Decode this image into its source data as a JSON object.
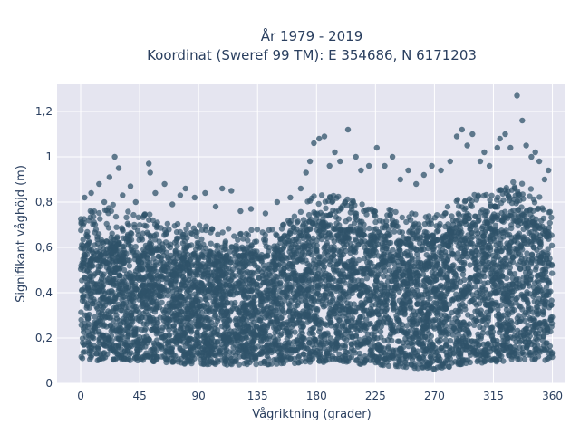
{
  "chart_data": {
    "type": "scatter",
    "title": "År 1979 - 2019",
    "subtitle": "Koordinat (Sweref 99 TM): E 354686, N 6171203",
    "xlabel": "Vågriktning (grader)",
    "ylabel": "Signifikant våghöjd (m)",
    "xlim": [
      -18,
      370
    ],
    "ylim": [
      0,
      1.32
    ],
    "x_ticks": [
      0,
      45,
      90,
      135,
      180,
      225,
      270,
      315,
      360
    ],
    "x_tick_labels": [
      "0",
      "45",
      "90",
      "135",
      "180",
      "225",
      "270",
      "315",
      "360"
    ],
    "y_ticks": [
      0,
      0.2,
      0.4,
      0.6,
      0.8,
      1.0,
      1.2
    ],
    "y_tick_labels": [
      "0",
      "0,2",
      "0,4",
      "0,6",
      "0,8",
      "1",
      "1,2"
    ],
    "grid": true,
    "legend": "none",
    "marker_color": "#2f5269",
    "envelope": {
      "x": [
        0,
        20,
        45,
        70,
        90,
        120,
        150,
        170,
        180,
        200,
        225,
        250,
        270,
        290,
        315,
        335,
        360
      ],
      "upper": [
        0.74,
        0.8,
        0.76,
        0.72,
        0.7,
        0.68,
        0.68,
        0.78,
        0.86,
        0.82,
        0.78,
        0.76,
        0.74,
        0.82,
        0.86,
        0.9,
        0.78
      ],
      "dense_upper": [
        0.58,
        0.62,
        0.6,
        0.58,
        0.56,
        0.55,
        0.56,
        0.64,
        0.72,
        0.68,
        0.64,
        0.62,
        0.62,
        0.68,
        0.72,
        0.74,
        0.64
      ],
      "lower": [
        0.1,
        0.1,
        0.1,
        0.09,
        0.08,
        0.08,
        0.08,
        0.09,
        0.09,
        0.09,
        0.08,
        0.07,
        0.06,
        0.08,
        0.09,
        0.1,
        0.1
      ]
    },
    "outliers": [
      [
        3,
        0.82
      ],
      [
        8,
        0.84
      ],
      [
        14,
        0.88
      ],
      [
        18,
        0.8
      ],
      [
        22,
        0.91
      ],
      [
        26,
        1.0
      ],
      [
        29,
        0.95
      ],
      [
        32,
        0.83
      ],
      [
        38,
        0.87
      ],
      [
        42,
        0.8
      ],
      [
        52,
        0.97
      ],
      [
        53,
        0.93
      ],
      [
        57,
        0.84
      ],
      [
        64,
        0.88
      ],
      [
        70,
        0.79
      ],
      [
        76,
        0.83
      ],
      [
        80,
        0.86
      ],
      [
        87,
        0.82
      ],
      [
        95,
        0.84
      ],
      [
        103,
        0.78
      ],
      [
        108,
        0.86
      ],
      [
        115,
        0.85
      ],
      [
        122,
        0.76
      ],
      [
        130,
        0.77
      ],
      [
        141,
        0.75
      ],
      [
        150,
        0.8
      ],
      [
        160,
        0.82
      ],
      [
        168,
        0.86
      ],
      [
        172,
        0.93
      ],
      [
        175,
        0.98
      ],
      [
        178,
        1.06
      ],
      [
        182,
        1.08
      ],
      [
        186,
        1.09
      ],
      [
        190,
        0.96
      ],
      [
        194,
        1.02
      ],
      [
        198,
        0.98
      ],
      [
        204,
        1.12
      ],
      [
        210,
        1.0
      ],
      [
        214,
        0.94
      ],
      [
        220,
        0.96
      ],
      [
        226,
        1.04
      ],
      [
        232,
        0.96
      ],
      [
        238,
        1.0
      ],
      [
        244,
        0.9
      ],
      [
        250,
        0.94
      ],
      [
        256,
        0.88
      ],
      [
        262,
        0.92
      ],
      [
        268,
        0.96
      ],
      [
        275,
        0.94
      ],
      [
        282,
        0.98
      ],
      [
        287,
        1.09
      ],
      [
        291,
        1.12
      ],
      [
        295,
        1.05
      ],
      [
        299,
        1.1
      ],
      [
        305,
        0.98
      ],
      [
        308,
        1.02
      ],
      [
        312,
        0.96
      ],
      [
        318,
        1.04
      ],
      [
        320,
        1.08
      ],
      [
        324,
        1.1
      ],
      [
        328,
        1.04
      ],
      [
        333,
        1.27
      ],
      [
        337,
        1.16
      ],
      [
        340,
        1.05
      ],
      [
        344,
        1.0
      ],
      [
        347,
        1.02
      ],
      [
        350,
        0.98
      ],
      [
        354,
        0.9
      ],
      [
        357,
        0.94
      ]
    ]
  }
}
